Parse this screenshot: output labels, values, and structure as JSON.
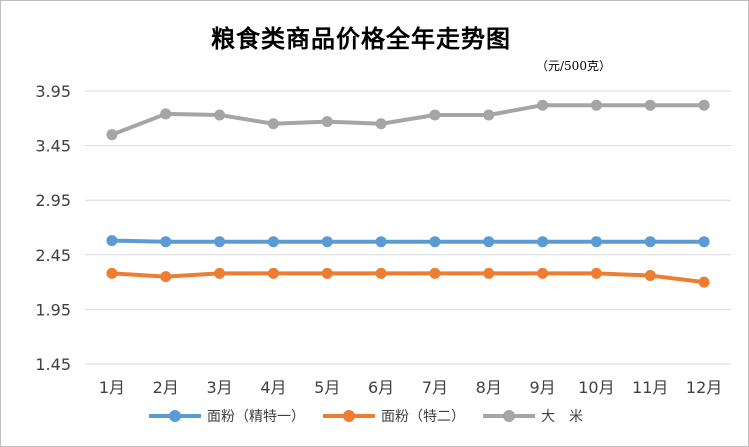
{
  "chart_data": {
    "type": "line",
    "title": "粮食类商品价格全年走势图",
    "subtitle": "（元/500克）",
    "xlabel": "",
    "ylabel": "",
    "categories": [
      "1月",
      "2月",
      "3月",
      "4月",
      "5月",
      "6月",
      "7月",
      "8月",
      "9月",
      "10月",
      "11月",
      "12月"
    ],
    "ylim": [
      1.45,
      4.0
    ],
    "yticks": [
      "3.95",
      "3.45",
      "2.95",
      "2.45",
      "1.95",
      "1.45"
    ],
    "ytick_values": [
      3.95,
      3.45,
      2.95,
      2.45,
      1.95,
      1.45
    ],
    "grid": true,
    "legend_position": "bottom",
    "series": [
      {
        "name": "面粉（精特一）",
        "color": "#5b9bd5",
        "values": [
          2.58,
          2.57,
          2.57,
          2.57,
          2.57,
          2.57,
          2.57,
          2.57,
          2.57,
          2.57,
          2.57,
          2.57
        ]
      },
      {
        "name": "面粉（特二）",
        "color": "#ed7d31",
        "values": [
          2.28,
          2.25,
          2.28,
          2.28,
          2.28,
          2.28,
          2.28,
          2.28,
          2.28,
          2.28,
          2.26,
          2.2
        ]
      },
      {
        "name": "大　米",
        "color": "#a5a5a5",
        "values": [
          3.55,
          3.74,
          3.73,
          3.65,
          3.67,
          3.65,
          3.73,
          3.73,
          3.82,
          3.82,
          3.82,
          3.82
        ]
      }
    ]
  }
}
